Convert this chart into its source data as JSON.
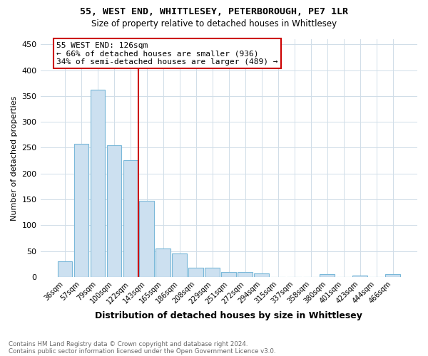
{
  "title_line1": "55, WEST END, WHITTLESEY, PETERBOROUGH, PE7 1LR",
  "title_line2": "Size of property relative to detached houses in Whittlesey",
  "xlabel": "Distribution of detached houses by size in Whittlesey",
  "ylabel": "Number of detached properties",
  "footer_line1": "Contains HM Land Registry data © Crown copyright and database right 2024.",
  "footer_line2": "Contains public sector information licensed under the Open Government Licence v3.0.",
  "annotation_title": "55 WEST END: 126sqm",
  "annotation_line2": "← 66% of detached houses are smaller (936)",
  "annotation_line3": "34% of semi-detached houses are larger (489) →",
  "categories": [
    "36sqm",
    "57sqm",
    "79sqm",
    "100sqm",
    "122sqm",
    "143sqm",
    "165sqm",
    "186sqm",
    "208sqm",
    "229sqm",
    "251sqm",
    "272sqm",
    "294sqm",
    "315sqm",
    "337sqm",
    "358sqm",
    "380sqm",
    "401sqm",
    "423sqm",
    "444sqm",
    "466sqm"
  ],
  "values": [
    30,
    258,
    362,
    255,
    226,
    147,
    55,
    45,
    18,
    18,
    10,
    10,
    6,
    0,
    0,
    0,
    5,
    0,
    3,
    0,
    5
  ],
  "bar_color": "#cce0f0",
  "bar_edge_color": "#7ab8d9",
  "vline_color": "#cc0000",
  "annotation_box_color": "#cc0000",
  "annotation_fill": "#ffffff",
  "background_color": "#ffffff",
  "grid_color": "#d0dde8",
  "ylim": [
    0,
    460
  ],
  "yticks": [
    0,
    50,
    100,
    150,
    200,
    250,
    300,
    350,
    400,
    450
  ],
  "vline_index": 4.5
}
